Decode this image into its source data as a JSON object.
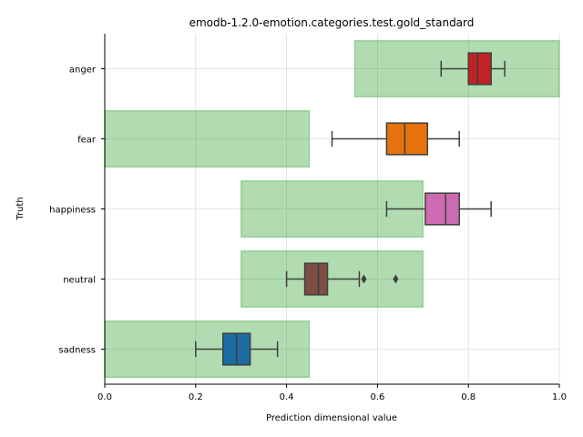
{
  "chart_data": {
    "type": "box",
    "title": "emodb-1.2.0-emotion.categories.test.gold_standard",
    "xlabel": "Prediction dimensional value",
    "ylabel": "Truth",
    "xlim": [
      0,
      1
    ],
    "xticks": [
      "0.0",
      "0.2",
      "0.4",
      "0.6",
      "0.8",
      "1.0"
    ],
    "grid": true,
    "categories": [
      "anger",
      "fear",
      "happiness",
      "neutral",
      "sadness"
    ],
    "colors": [
      "#d62728",
      "#ff7f0e",
      "#e377c2",
      "#8c564b",
      "#1f77b4"
    ],
    "target_ranges": [
      [
        0.55,
        1.0
      ],
      [
        0.0,
        0.45
      ],
      [
        0.3,
        0.7
      ],
      [
        0.3,
        0.7
      ],
      [
        0.0,
        0.45
      ]
    ],
    "target_color": "#2ca02c",
    "boxes": [
      {
        "min": 0.74,
        "q1": 0.8,
        "median": 0.82,
        "q3": 0.85,
        "max": 0.88,
        "outliers": []
      },
      {
        "min": 0.5,
        "q1": 0.62,
        "median": 0.66,
        "q3": 0.71,
        "max": 0.78,
        "outliers": []
      },
      {
        "min": 0.62,
        "q1": 0.705,
        "median": 0.75,
        "q3": 0.78,
        "max": 0.85,
        "outliers": []
      },
      {
        "min": 0.4,
        "q1": 0.44,
        "median": 0.47,
        "q3": 0.49,
        "max": 0.56,
        "outliers": [
          0.57,
          0.64
        ]
      },
      {
        "min": 0.2,
        "q1": 0.26,
        "median": 0.29,
        "q3": 0.32,
        "max": 0.38,
        "outliers": []
      }
    ]
  }
}
